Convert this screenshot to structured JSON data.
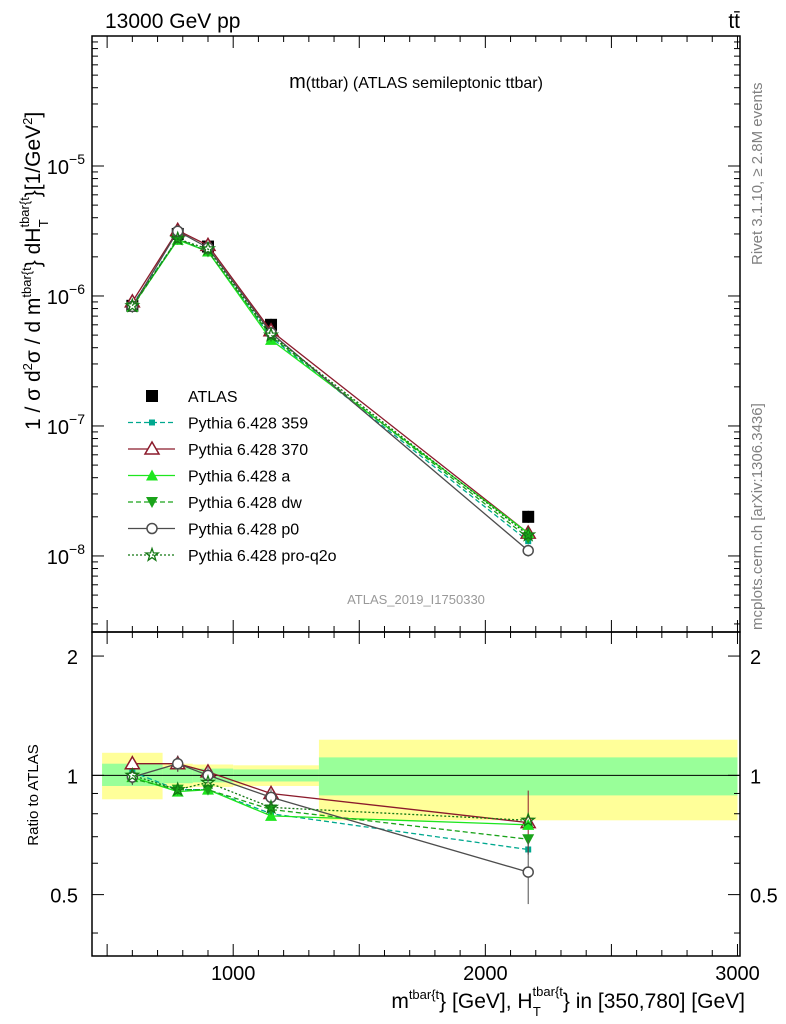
{
  "header": {
    "energy_label": "13000 GeV pp",
    "process_label": "tt̄"
  },
  "side_labels": {
    "rivet": "Rivet 3.1.10, ≥ 2.8M events",
    "mcplots": "mcplots.cern.ch [arXiv:1306.3436]"
  },
  "chart_data": [
    {
      "type": "scatter",
      "title_main": "m",
      "title_sub": "(ttbar) (ATLAS semileptonic ttbar)",
      "analysis_label": "ATLAS_2019_I1750330",
      "ylabel_parts": {
        "a": "1 / σ d",
        "b": "2",
        "c": "σ / d m",
        "d": "tbar{t",
        "e": "} dH",
        "f": "tbar{t",
        "g": "T",
        "h": "}[1/GeV",
        "i": "2",
        "j": "]"
      },
      "yscale": "log",
      "ylim": [
        2.6e-09,
        0.0001
      ],
      "xlim": [
        440,
        3010
      ],
      "y_ticks": [
        {
          "value": 1e-08,
          "base": "10",
          "exp": "−8"
        },
        {
          "value": 1e-07,
          "base": "10",
          "exp": "−7"
        },
        {
          "value": 1e-06,
          "base": "10",
          "exp": "−6"
        },
        {
          "value": 1e-05,
          "base": "10",
          "exp": "−5"
        }
      ],
      "x": [
        600,
        780,
        900,
        1150,
        2170
      ],
      "series": [
        {
          "name": "ATLAS",
          "color": "#000000",
          "marker": "square",
          "line": "none",
          "values": [
            8.4e-07,
            3e-06,
            2.4e-06,
            6e-07,
            2e-08
          ]
        },
        {
          "name": "Pythia 6.428 359",
          "color": "#00a88f",
          "marker": "small-square",
          "line": "dashed",
          "values": [
            8.6e-07,
            2.75e-06,
            2.2e-06,
            4.8e-07,
            1.3e-08
          ]
        },
        {
          "name": "Pythia 6.428 370",
          "color": "#8b1a2b",
          "marker": "triangle-open",
          "line": "solid",
          "values": [
            9e-07,
            3.2e-06,
            2.45e-06,
            5.4e-07,
            1.5e-08
          ]
        },
        {
          "name": "Pythia 6.428 a",
          "color": "#1ee61e",
          "marker": "triangle",
          "line": "solid",
          "values": [
            8.3e-07,
            2.7e-06,
            2.2e-06,
            4.6e-07,
            1.5e-08
          ]
        },
        {
          "name": "Pythia 6.428 dw",
          "color": "#1aa31a",
          "marker": "triangle-down",
          "line": "dashed",
          "values": [
            8.2e-07,
            2.75e-06,
            2.2e-06,
            4.9e-07,
            1.38e-08
          ]
        },
        {
          "name": "Pythia 6.428 p0",
          "color": "#4d4d4d",
          "marker": "circle-open",
          "line": "solid",
          "values": [
            8.3e-07,
            3.15e-06,
            2.35e-06,
            5.2e-07,
            1.1e-08
          ]
        },
        {
          "name": "Pythia 6.428 pro-q2o",
          "color": "#137813",
          "marker": "star-open",
          "line": "dotted",
          "values": [
            8.4e-07,
            2.75e-06,
            2.3e-06,
            5e-07,
            1.45e-08
          ]
        }
      ]
    },
    {
      "type": "scatter",
      "ylabel": "Ratio to ATLAS",
      "xlabel_parts": {
        "a": "m",
        "b": "tbar{t",
        "c": "} [GeV], H",
        "d": "tbar{t",
        "e": "T",
        "f": "} in [350,780] [GeV]"
      },
      "ylim": [
        0.35,
        2.3
      ],
      "xlim": [
        440,
        3010
      ],
      "y_ticks": [
        0.5,
        1,
        2
      ],
      "x_ticks": [
        1000,
        2000,
        3000
      ],
      "reference_line": 1,
      "bins": [
        {
          "lo": 480,
          "hi": 720,
          "inner": [
            0.94,
            1.07
          ],
          "outer": [
            0.87,
            1.14
          ]
        },
        {
          "lo": 720,
          "hi": 840,
          "inner": [
            0.955,
            1.045
          ],
          "outer": [
            0.93,
            1.07
          ]
        },
        {
          "lo": 840,
          "hi": 1000,
          "inner": [
            0.96,
            1.04
          ],
          "outer": [
            0.935,
            1.065
          ]
        },
        {
          "lo": 1000,
          "hi": 1340,
          "inner": [
            0.965,
            1.035
          ],
          "outer": [
            0.94,
            1.06
          ]
        },
        {
          "lo": 1340,
          "hi": 3000,
          "inner": [
            0.89,
            1.11
          ],
          "outer": [
            0.77,
            1.23
          ]
        }
      ],
      "x": [
        600,
        780,
        900,
        1150,
        2170
      ],
      "series": [
        {
          "name": "Pythia 6.428 359",
          "values": [
            1.02,
            0.92,
            0.92,
            0.8,
            0.65
          ]
        },
        {
          "name": "Pythia 6.428 370",
          "values": [
            1.07,
            1.07,
            1.02,
            0.9,
            0.76
          ]
        },
        {
          "name": "Pythia 6.428 a",
          "values": [
            0.99,
            0.91,
            0.92,
            0.79,
            0.75
          ]
        },
        {
          "name": "Pythia 6.428 dw",
          "values": [
            0.98,
            0.92,
            0.92,
            0.82,
            0.69
          ]
        },
        {
          "name": "Pythia 6.428 p0",
          "values": [
            0.99,
            1.07,
            1.0,
            0.88,
            0.57
          ]
        },
        {
          "name": "Pythia 6.428 pro-q2o",
          "values": [
            1.0,
            0.92,
            0.96,
            0.83,
            0.77
          ]
        }
      ]
    }
  ]
}
